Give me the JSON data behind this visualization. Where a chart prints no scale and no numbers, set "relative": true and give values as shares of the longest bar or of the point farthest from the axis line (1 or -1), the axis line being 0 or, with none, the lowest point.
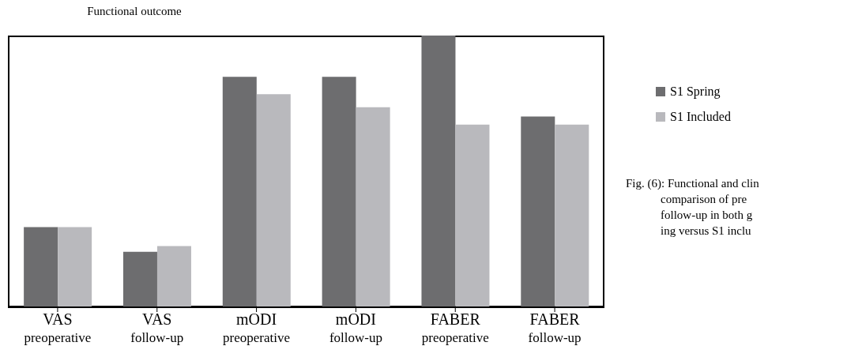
{
  "chart_data": {
    "type": "bar",
    "title": "Functional outcome",
    "relative": true,
    "categories": [
      "VAS preoperative",
      "VAS follow-up",
      "mODI preoperative",
      "mODI follow-up",
      "FABER preoperative",
      "FABER follow-up"
    ],
    "series": [
      {
        "name": "S1 Spring",
        "color": "#6d6d6f",
        "values": [
          0.295,
          0.204,
          0.848,
          0.848,
          1,
          0.702
        ]
      },
      {
        "name": "S1 Included",
        "color": "#b9b9bd",
        "values": [
          0.295,
          0.225,
          0.784,
          0.736,
          0.672,
          0.672
        ]
      }
    ],
    "legend": "right",
    "annotations": [
      "Fig. (6): Functional and clin",
      "comparison of pre",
      "follow-up in both g",
      "ing versus S1 inclu"
    ]
  }
}
